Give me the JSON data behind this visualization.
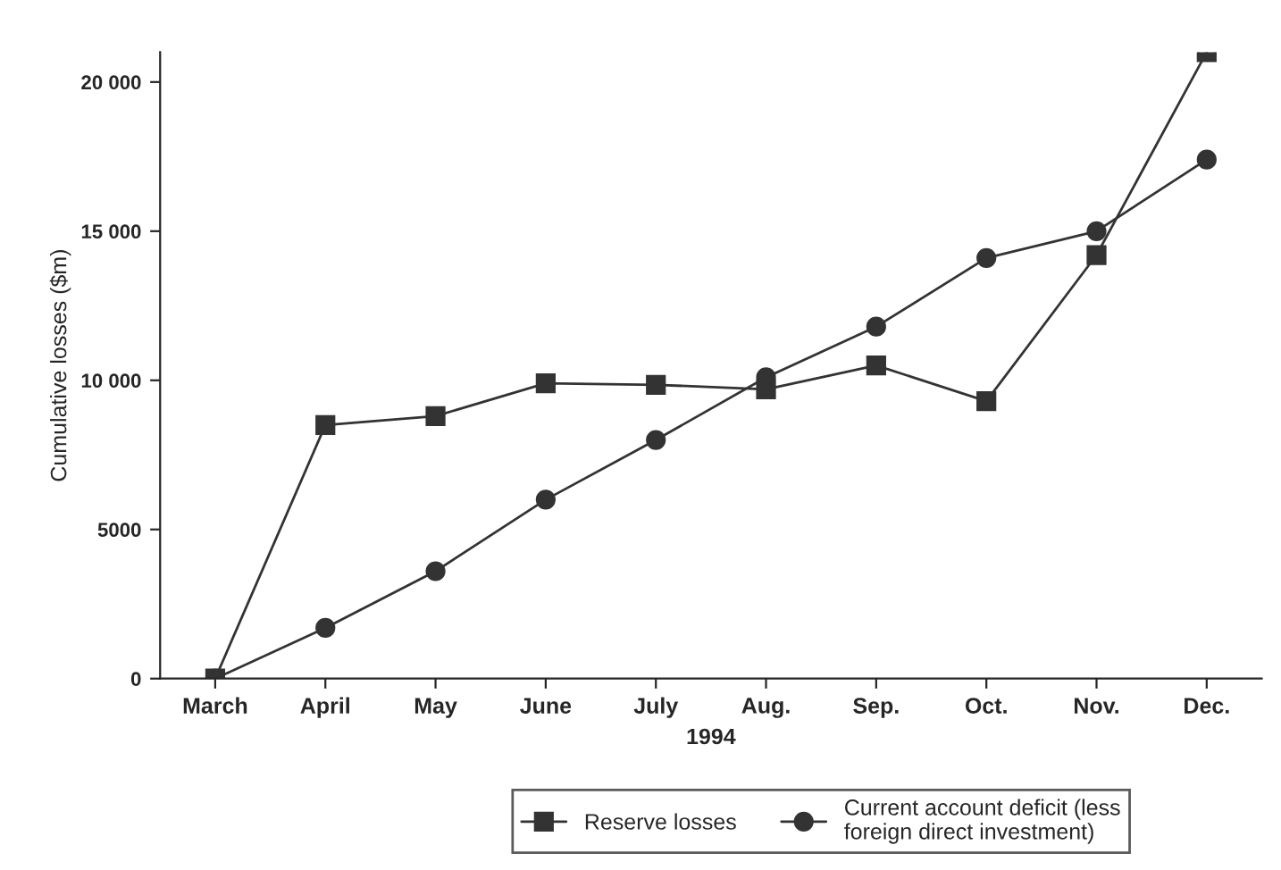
{
  "chart_data": {
    "type": "line",
    "xlabel": "1994",
    "ylabel": "Cumulative losses ($m)",
    "categories": [
      "March",
      "April",
      "May",
      "June",
      "July",
      "Aug.",
      "Sep.",
      "Oct.",
      "Nov.",
      "Dec."
    ],
    "series": [
      {
        "name": "Reserve losses",
        "color": "#333333",
        "marker": "square",
        "values": [
          0,
          8500,
          8800,
          9900,
          9850,
          9700,
          10500,
          9300,
          14200,
          21000
        ]
      },
      {
        "name": "Current account deficit (less\nforeign direct investment)",
        "color": "#333333",
        "marker": "circle",
        "values": [
          0,
          1700,
          3600,
          6000,
          8000,
          10100,
          11800,
          14100,
          15000,
          17400
        ]
      }
    ],
    "ylim": [
      0,
      21000
    ],
    "yticks": [
      0,
      5000,
      {
        "value": 10000,
        "label": "10 000"
      },
      {
        "value": 15000,
        "label": "15 000"
      },
      {
        "value": 20000,
        "label": "20 000"
      }
    ],
    "line_style": "solid",
    "grid": false,
    "legend": "bottom"
  }
}
